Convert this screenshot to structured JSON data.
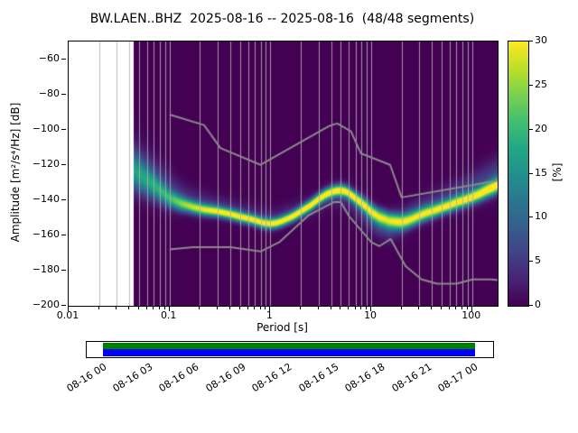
{
  "title": "BW.LAEN..BHZ  2025-08-16 -- 2025-08-16  (48/48 segments)",
  "axes": {
    "x_label": "Period [s]",
    "y_label": "Amplitude [m²/s⁴/Hz] [dB]",
    "x_tick_values": [
      0.01,
      0.1,
      1,
      10,
      100
    ],
    "x_tick_labels": [
      "0.01",
      "0.1",
      "1",
      "10",
      "100"
    ],
    "y_tick_values": [
      -60,
      -80,
      -100,
      -120,
      -140,
      -160,
      -180,
      -200
    ],
    "y_tick_labels": [
      "−60",
      "−80",
      "−100",
      "−120",
      "−140",
      "−160",
      "−180",
      "−200"
    ]
  },
  "colorbar": {
    "label": "[%]",
    "range": [
      0,
      30
    ],
    "tick_values": [
      0,
      5,
      10,
      15,
      20,
      25,
      30
    ],
    "tick_labels": [
      "0",
      "5",
      "10",
      "15",
      "20",
      "25",
      "30"
    ]
  },
  "chart_data": {
    "type": "heatmap",
    "title": "BW.LAEN..BHZ  2025-08-16 -- 2025-08-16  (48/48 segments)",
    "xlabel": "Period [s]",
    "ylabel": "Amplitude [m²/s⁴/Hz] [dB]",
    "x_scale": "log",
    "x_range": [
      0.01,
      179
    ],
    "y_range": [
      -200,
      -50
    ],
    "data_start_period": 0.044,
    "prob_max_percent": 30,
    "background_color": "#440154",
    "grid_color": "#b0b0b0",
    "noise_model_color": "#8a8a8a",
    "colormap": "viridis",
    "colormap_stops": [
      [
        0.0,
        "#440154"
      ],
      [
        0.1,
        "#482475"
      ],
      [
        0.2,
        "#414487"
      ],
      [
        0.3,
        "#355f8d"
      ],
      [
        0.4,
        "#2a788e"
      ],
      [
        0.5,
        "#21918c"
      ],
      [
        0.6,
        "#22a884"
      ],
      [
        0.7,
        "#44bf70"
      ],
      [
        0.8,
        "#7ad151"
      ],
      [
        0.9,
        "#bddf26"
      ],
      [
        1.0,
        "#fde725"
      ]
    ],
    "mode_curve": [
      [
        0.044,
        -124
      ],
      [
        0.055,
        -128
      ],
      [
        0.07,
        -132
      ],
      [
        0.085,
        -136
      ],
      [
        0.1,
        -139
      ],
      [
        0.13,
        -142
      ],
      [
        0.17,
        -144
      ],
      [
        0.22,
        -145.5
      ],
      [
        0.3,
        -146.5
      ],
      [
        0.4,
        -148
      ],
      [
        0.5,
        -149.5
      ],
      [
        0.6,
        -150.5
      ],
      [
        0.7,
        -151.5
      ],
      [
        0.85,
        -153
      ],
      [
        1.0,
        -153.5
      ],
      [
        1.15,
        -153
      ],
      [
        1.3,
        -152
      ],
      [
        1.5,
        -150.5
      ],
      [
        1.7,
        -149
      ],
      [
        2.0,
        -146.5
      ],
      [
        2.5,
        -143
      ],
      [
        3.0,
        -139.5
      ],
      [
        3.5,
        -137
      ],
      [
        4.0,
        -135.5
      ],
      [
        4.5,
        -134.7
      ],
      [
        5.0,
        -134.5
      ],
      [
        5.5,
        -135
      ],
      [
        6.0,
        -136
      ],
      [
        7.0,
        -139
      ],
      [
        8.0,
        -141.5
      ],
      [
        9.0,
        -144
      ],
      [
        10,
        -146.5
      ],
      [
        11,
        -148
      ],
      [
        12,
        -149.5
      ],
      [
        13.5,
        -150.5
      ],
      [
        15,
        -151.5
      ],
      [
        17,
        -152
      ],
      [
        20,
        -152.5
      ],
      [
        23,
        -151.8
      ],
      [
        25,
        -151
      ],
      [
        30,
        -149
      ],
      [
        35,
        -147.5
      ],
      [
        40,
        -146.5
      ],
      [
        45,
        -145.5
      ],
      [
        50,
        -144.5
      ],
      [
        60,
        -143
      ],
      [
        70,
        -141.5
      ],
      [
        85,
        -140
      ],
      [
        100,
        -138.5
      ],
      [
        120,
        -136.5
      ],
      [
        140,
        -134.5
      ],
      [
        160,
        -133
      ],
      [
        179,
        -131.5
      ]
    ],
    "band": [
      [
        0.044,
        12,
        7,
        6,
        9,
        5
      ],
      [
        0.07,
        14,
        5,
        6,
        8,
        5
      ],
      [
        0.1,
        17,
        3.5,
        5,
        7,
        5
      ],
      [
        0.15,
        24,
        2.5,
        4,
        5,
        4
      ],
      [
        0.3,
        29,
        2,
        4,
        4,
        3
      ],
      [
        0.7,
        30,
        2,
        3,
        4,
        3
      ],
      [
        1.5,
        30,
        2,
        3,
        4,
        3
      ],
      [
        3,
        30,
        2.2,
        3,
        4,
        -2
      ],
      [
        6,
        30,
        2.2,
        4,
        5,
        -3
      ],
      [
        10,
        26,
        2.8,
        7,
        5,
        -4
      ],
      [
        15,
        24,
        3,
        7,
        5,
        -4
      ],
      [
        25,
        26,
        2.8,
        5,
        5,
        3
      ],
      [
        50,
        28,
        2.5,
        5,
        5,
        4
      ],
      [
        100,
        29,
        2.5,
        6,
        6,
        5
      ],
      [
        179,
        29,
        3,
        6,
        7,
        6
      ]
    ],
    "nhnm": [
      [
        0.1,
        -91.5
      ],
      [
        0.22,
        -97.4
      ],
      [
        0.32,
        -110.5
      ],
      [
        0.8,
        -120
      ],
      [
        3.8,
        -98
      ],
      [
        4.6,
        -96.5
      ],
      [
        6.3,
        -101
      ],
      [
        7.9,
        -113.5
      ],
      [
        15.4,
        -120
      ],
      [
        20,
        -138.5
      ],
      [
        179,
        -129
      ]
    ],
    "nlnm": [
      [
        0.1,
        -168
      ],
      [
        0.17,
        -166.7
      ],
      [
        0.4,
        -166.7
      ],
      [
        0.8,
        -169.2
      ],
      [
        1.24,
        -163.7
      ],
      [
        2.4,
        -148.6
      ],
      [
        4.3,
        -141.1
      ],
      [
        5,
        -141.1
      ],
      [
        6,
        -149
      ],
      [
        10,
        -163.8
      ],
      [
        12,
        -166.2
      ],
      [
        15.6,
        -162.1
      ],
      [
        21.9,
        -177.5
      ],
      [
        31.6,
        -185
      ],
      [
        45,
        -187.5
      ],
      [
        70,
        -187.5
      ],
      [
        101,
        -185
      ],
      [
        154,
        -185
      ],
      [
        179,
        -185.4
      ]
    ]
  },
  "timeline": {
    "tick_labels": [
      "08-16 00",
      "08-16 03",
      "08-16 06",
      "08-16 09",
      "08-16 12",
      "08-16 15",
      "08-16 18",
      "08-16 21",
      "08-17 00"
    ],
    "coverage_start_frac": 0.04,
    "coverage_end_frac": 0.955,
    "covered_color": "#008000",
    "data_color": "#0000ff"
  }
}
